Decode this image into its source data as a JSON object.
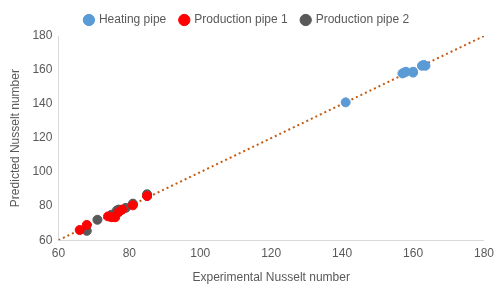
{
  "chart_data": {
    "type": "scatter",
    "x_label": "Experimental Nusselt number",
    "y_label": "Predicted Nusselt number",
    "xlim": [
      60,
      180
    ],
    "xticks": [
      60,
      80,
      100,
      120,
      140,
      160,
      180
    ],
    "ylim": [
      60,
      180
    ],
    "yticks": [
      60,
      80,
      100,
      120,
      140,
      160,
      180
    ],
    "grid": false,
    "legend": "top",
    "series": [
      {
        "name": "Heating pipe",
        "color": "#5b9bd5",
        "marker": "circle",
        "x": [
          141,
          157,
          157.5,
          158,
          160,
          160,
          162.5,
          163.5,
          163
        ],
        "values": [
          141,
          158,
          158.5,
          159,
          159,
          158.5,
          162.5,
          162.5,
          163
        ]
      },
      {
        "name": "Production pipe 1",
        "color": "#ff0000",
        "marker": "circle",
        "x": [
          66,
          68,
          74,
          75,
          76,
          77,
          78,
          81,
          85
        ],
        "values": [
          66,
          69,
          74,
          73.5,
          73.5,
          76.5,
          78,
          80.5,
          86
        ]
      },
      {
        "name": "Production pipe 2",
        "color": "#595959",
        "marker": "circle",
        "x": [
          68,
          71,
          75,
          76.5,
          77,
          79,
          81,
          85,
          85
        ],
        "values": [
          65.5,
          72,
          75,
          77.5,
          78,
          79,
          81.5,
          86,
          87
        ]
      },
      {
        "type": "line",
        "line_style": "dotted",
        "color": "#c55a11",
        "x": [
          60,
          180
        ],
        "values": [
          60,
          180
        ]
      }
    ]
  }
}
